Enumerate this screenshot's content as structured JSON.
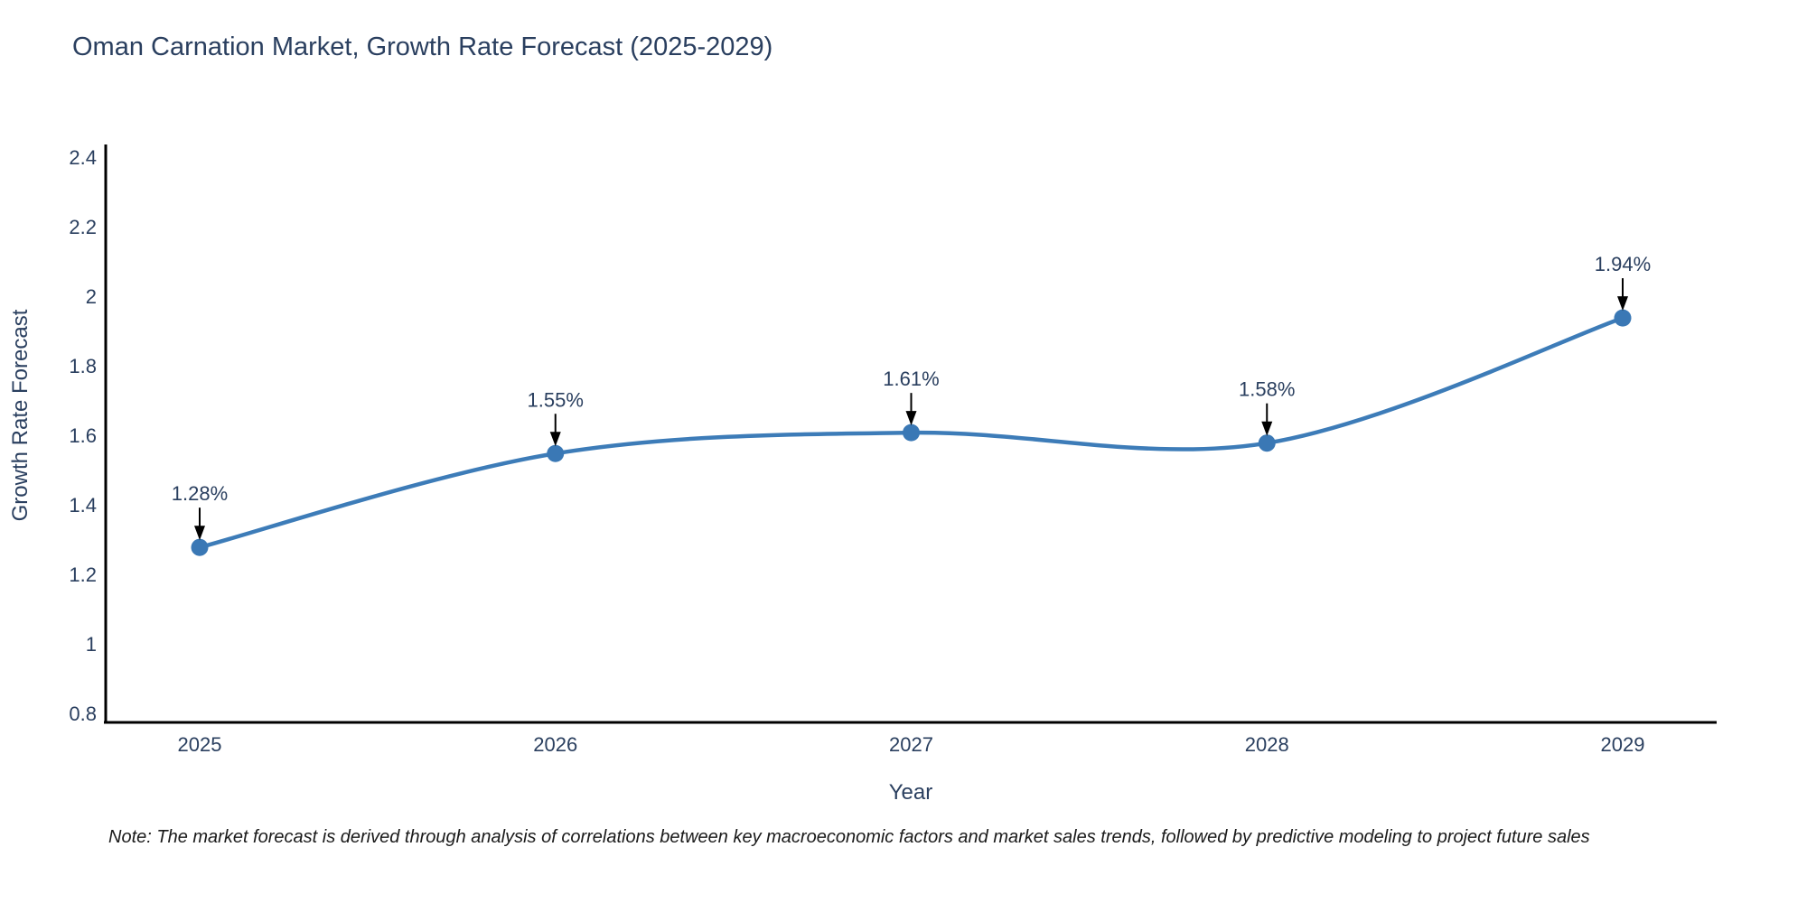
{
  "title": "Oman Carnation Market, Growth Rate Forecast (2025-2029)",
  "note": "Note: The market forecast is derived through analysis of correlations between key macroeconomic factors and market sales trends, followed by predictive modeling to project future sales",
  "colors": {
    "title_text": "#2a3f5f",
    "axis_text": "#2a3f5f",
    "axis_line": "#000000",
    "series_line": "#3d7cb8",
    "marker": "#3a78b5",
    "annotation_text": "#2a3f5f",
    "annotation_arrow": "#000000",
    "background": "#ffffff"
  },
  "chart_data": {
    "type": "line",
    "title": "Oman Carnation Market, Growth Rate Forecast (2025-2029)",
    "x": [
      2025,
      2026,
      2027,
      2028,
      2029
    ],
    "y": [
      1.28,
      1.55,
      1.61,
      1.58,
      1.94
    ],
    "point_labels": [
      "1.28%",
      "1.55%",
      "1.61%",
      "1.58%",
      "1.94%"
    ],
    "xlabel": "Year",
    "ylabel": "Growth Rate Forecast",
    "x_tick_labels": [
      "2025",
      "2026",
      "2027",
      "2028",
      "2029"
    ],
    "y_tick_labels": [
      "0.8",
      "1",
      "1.2",
      "1.4",
      "1.6",
      "1.8",
      "2",
      "2.2",
      "2.4"
    ],
    "y_tick_values": [
      0.8,
      1.0,
      1.2,
      1.4,
      1.6,
      1.8,
      2.0,
      2.2,
      2.4
    ],
    "xlim": [
      2025,
      2029
    ],
    "ylim": [
      0.8,
      2.4
    ],
    "grid": false,
    "legend": "none",
    "line_shape": "spline",
    "marker_style": "circle"
  }
}
